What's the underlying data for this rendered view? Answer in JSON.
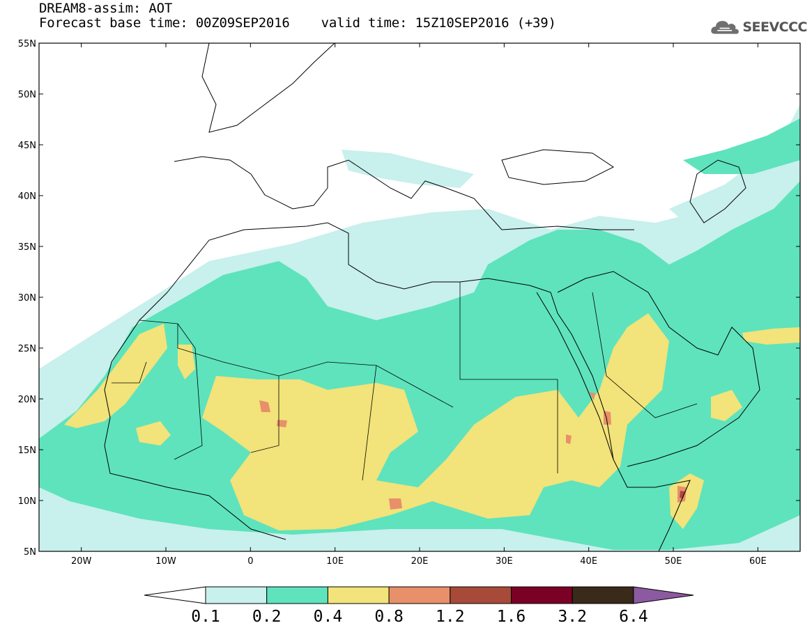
{
  "header": {
    "line1": "DREAM8-assim: AOT",
    "line2": "Forecast base time: 00Z09SEP2016    valid time: 15Z10SEP2016 (+39)"
  },
  "logo": {
    "text": "SEEVCCC",
    "icon": "cloud-icon"
  },
  "map": {
    "lon_range": [
      -25,
      65
    ],
    "lat_range": [
      5,
      55
    ],
    "lat_ticks": [
      "55N",
      "50N",
      "45N",
      "40N",
      "35N",
      "30N",
      "25N",
      "20N",
      "15N",
      "10N",
      "5N"
    ],
    "lon_ticks": [
      "20W",
      "10W",
      "0",
      "10E",
      "20E",
      "30E",
      "40E",
      "50E",
      "60E"
    ]
  },
  "colorbar": {
    "labels": [
      "0.1",
      "0.2",
      "0.4",
      "0.8",
      "1.2",
      "1.6",
      "3.2",
      "6.4"
    ],
    "colors": [
      "#ffffff",
      "#c8f0ec",
      "#5ee3bd",
      "#f2e37a",
      "#e8906a",
      "#a84a3a",
      "#7a0026",
      "#3a2a1a",
      "#8c5aa0"
    ]
  }
}
